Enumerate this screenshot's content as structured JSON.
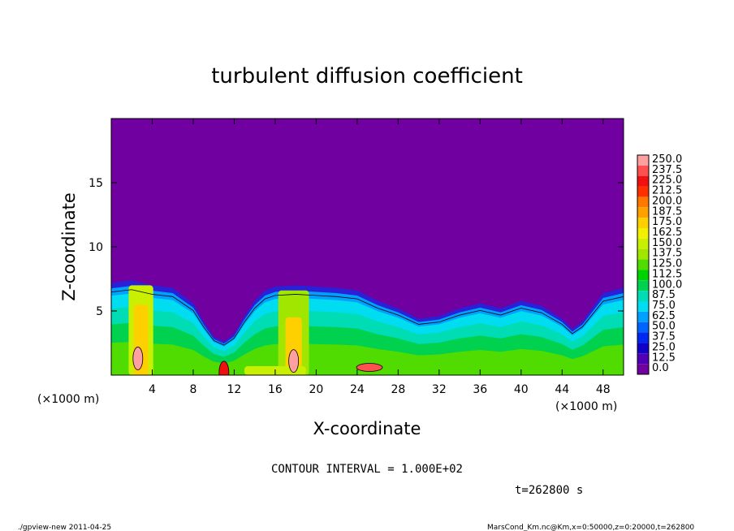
{
  "chart_data": {
    "type": "heatmap",
    "title": "turbulent diffusion coefficient",
    "xlabel": "X-coordinate",
    "ylabel": "Z-coordinate",
    "x_unit_left": "(×1000 m)",
    "x_unit_right": "(×1000 m)",
    "xlim": [
      0,
      50
    ],
    "ylim": [
      0,
      20
    ],
    "xticks": [
      "4",
      "8",
      "12",
      "16",
      "20",
      "24",
      "28",
      "32",
      "36",
      "40",
      "44",
      "48"
    ],
    "xtick_values": [
      4,
      8,
      12,
      16,
      20,
      24,
      28,
      32,
      36,
      40,
      44,
      48
    ],
    "yticks": [
      "5",
      "10",
      "15"
    ],
    "ytick_values": [
      5,
      10,
      15
    ],
    "background_color": "#7000a0",
    "colorbar": {
      "levels": [
        "250.0",
        "237.5",
        "225.0",
        "212.5",
        "200.0",
        "187.5",
        "175.0",
        "162.5",
        "150.0",
        "137.5",
        "125.0",
        "112.5",
        "100.0",
        "87.5",
        "75.0",
        "62.5",
        "50.0",
        "37.5",
        "25.0",
        "12.5",
        "0.0"
      ],
      "colors": [
        "#ffa0a0",
        "#ff5050",
        "#f01010",
        "#ff3000",
        "#ff7800",
        "#ffa000",
        "#ffd000",
        "#f0f000",
        "#c8f000",
        "#a0e600",
        "#50dc00",
        "#00d200",
        "#00d250",
        "#00dcb4",
        "#00dcf0",
        "#00a0ff",
        "#0064ff",
        "#0028f0",
        "#1000c8",
        "#5000b4",
        "#7000a0"
      ]
    },
    "contour_interval": "CONTOUR INTERVAL = 1.000E+02",
    "time_label": "t=262800 s",
    "turbulent_layer_top": [
      [
        0,
        7.2
      ],
      [
        2,
        7.4
      ],
      [
        4,
        7.0
      ],
      [
        6,
        6.8
      ],
      [
        8,
        5.6
      ],
      [
        9,
        4.2
      ],
      [
        10,
        3.0
      ],
      [
        11,
        2.6
      ],
      [
        12,
        3.2
      ],
      [
        13,
        4.6
      ],
      [
        14,
        5.8
      ],
      [
        15,
        6.6
      ],
      [
        16,
        6.9
      ],
      [
        18,
        7.0
      ],
      [
        20,
        6.9
      ],
      [
        22,
        6.8
      ],
      [
        24,
        6.6
      ],
      [
        26,
        5.8
      ],
      [
        28,
        5.2
      ],
      [
        30,
        4.4
      ],
      [
        32,
        4.6
      ],
      [
        34,
        5.2
      ],
      [
        36,
        5.6
      ],
      [
        38,
        5.2
      ],
      [
        40,
        5.8
      ],
      [
        42,
        5.4
      ],
      [
        44,
        4.4
      ],
      [
        45,
        3.6
      ],
      [
        46,
        4.2
      ],
      [
        48,
        6.4
      ],
      [
        50,
        6.8
      ]
    ],
    "hotspots": [
      {
        "x": 2.6,
        "z": 1.3,
        "value": 250
      },
      {
        "x": 17.8,
        "z": 1.1,
        "value": 250
      },
      {
        "x": 25.2,
        "z": 0.6,
        "value": 237.5
      },
      {
        "x": 11.0,
        "z": 0.2,
        "value": 225
      }
    ]
  },
  "footer_left": "./gpview-new   2011-04-25",
  "footer_right": "MarsCond_Km.nc@Km,x=0:50000,z=0:20000,t=262800"
}
